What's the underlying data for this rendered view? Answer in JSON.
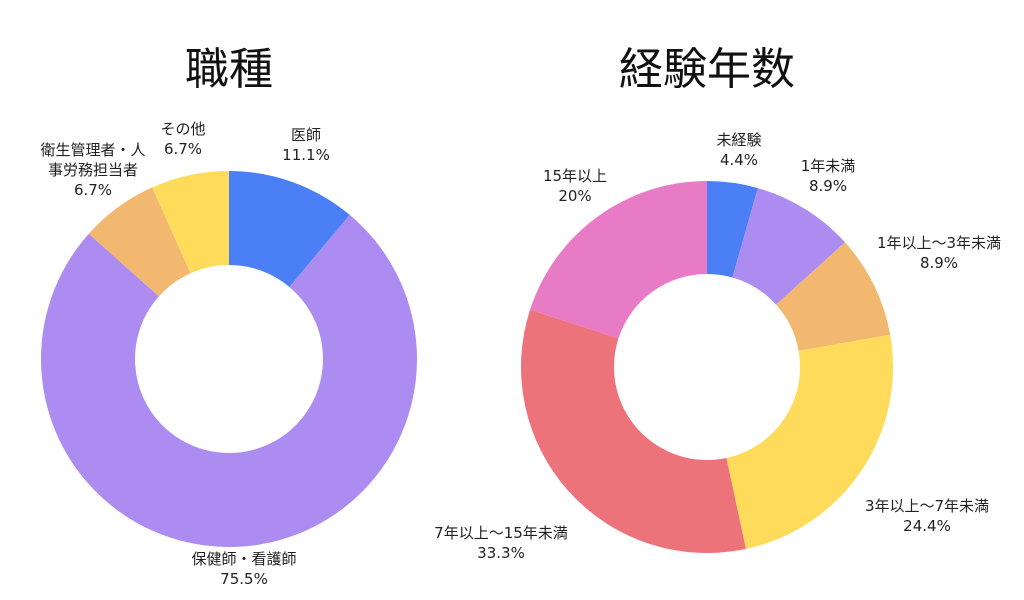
{
  "chart_data": [
    {
      "type": "donut",
      "title": "職種",
      "slices": [
        {
          "label": "医師",
          "value": 11.1,
          "percent_label": "11.1%",
          "color": "#4a7ff5"
        },
        {
          "label": "保健師・看護師",
          "value": 75.5,
          "percent_label": "75.5%",
          "color": "#ad8cf2"
        },
        {
          "label": "衛生管理者・人事労務担当者",
          "value": 6.7,
          "percent_label": "6.7%",
          "color": "#f2b870"
        },
        {
          "label": "その他",
          "value": 6.7,
          "percent_label": "6.7%",
          "color": "#ffdb5c"
        }
      ]
    },
    {
      "type": "donut",
      "title": "経験年数",
      "slices": [
        {
          "label": "未経験",
          "value": 4.4,
          "percent_label": "4.4%",
          "color": "#4a7ff5"
        },
        {
          "label": "1年未満",
          "value": 8.9,
          "percent_label": "8.9%",
          "color": "#ad8cf2"
        },
        {
          "label": "1年以上～3年未満",
          "value": 8.9,
          "percent_label": "8.9%",
          "color": "#f2b870"
        },
        {
          "label": "3年以上～7年未満",
          "value": 24.4,
          "percent_label": "24.4%",
          "color": "#ffdb5c"
        },
        {
          "label": "7年以上～15年未満",
          "value": 33.3,
          "percent_label": "33.3%",
          "color": "#ed737b"
        },
        {
          "label": "15年以上",
          "value": 20,
          "percent_label": "20%",
          "color": "#e87bc6"
        }
      ]
    }
  ]
}
